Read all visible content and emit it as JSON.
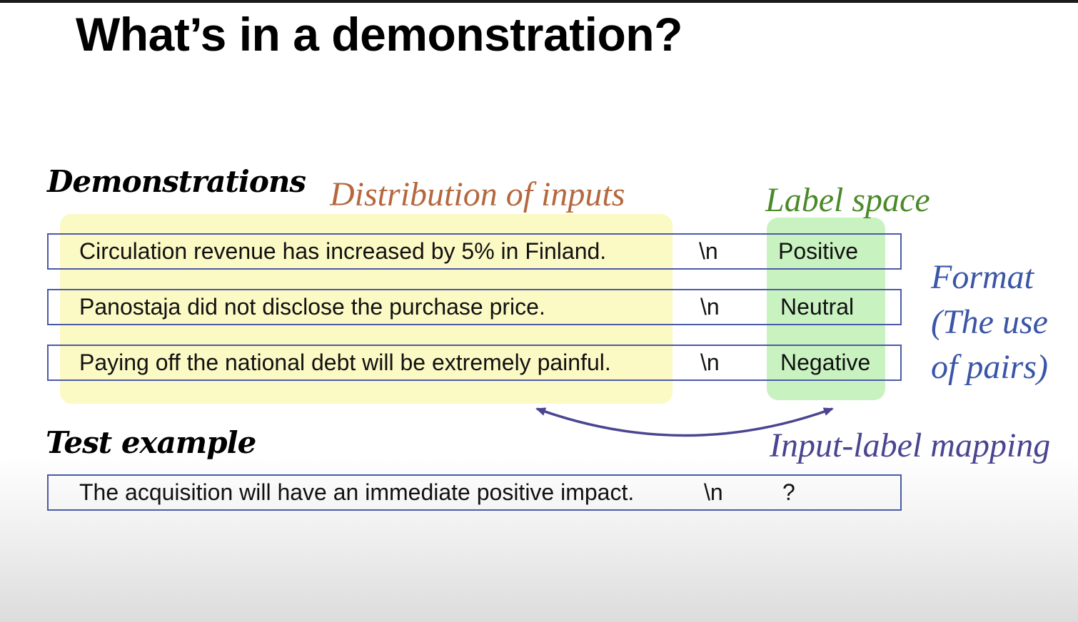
{
  "title": "What’s in a demonstration?",
  "demonstrations_heading": "Demonstrations",
  "test_heading": "Test example",
  "annotations": {
    "distribution": "Distribution of inputs",
    "label_space": "Label space",
    "format_line1": "Format",
    "format_line2": "(The use",
    "format_line3": "of pairs)",
    "mapping": "Input-label mapping"
  },
  "demonstrations": [
    {
      "input": "Circulation revenue has increased by 5% in Finland.",
      "sep": "\\n",
      "label": "Positive"
    },
    {
      "input": "Panostaja did not disclose the purchase price.",
      "sep": "\\n",
      "label": "Neutral"
    },
    {
      "input": "Paying off the national debt will be extremely painful.",
      "sep": "\\n",
      "label": "Negative"
    }
  ],
  "test": {
    "input": "The acquisition will have an immediate positive impact.",
    "sep": "\\n",
    "label": "?"
  },
  "colors": {
    "distribution": "#b5683e",
    "label_space": "#4b8a2a",
    "format": "#3a55a6",
    "mapping": "#4a4590",
    "box_border": "#4b5aa8",
    "yellow_highlight": "#fbf9c4",
    "green_highlight": "#c9f2c1"
  }
}
